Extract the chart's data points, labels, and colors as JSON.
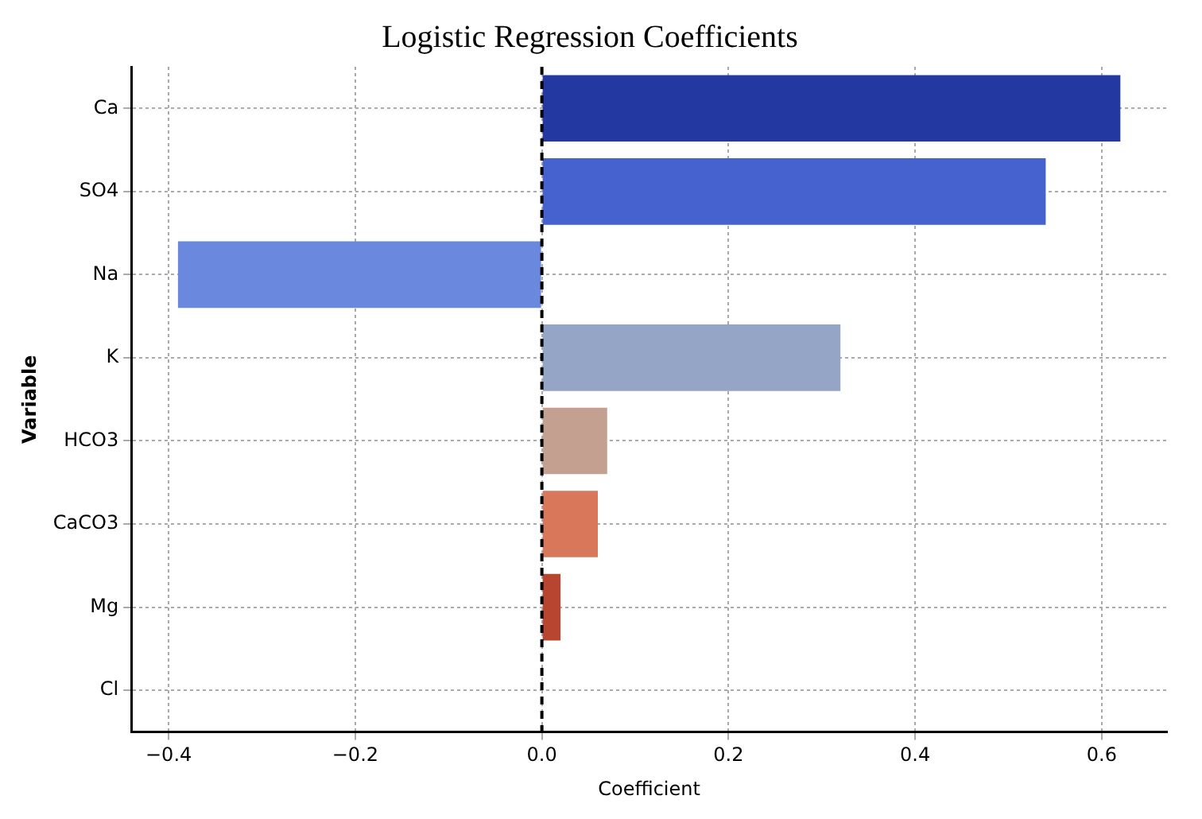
{
  "chart_data": {
    "type": "bar",
    "orientation": "horizontal",
    "title": "Logistic Regression Coefficients",
    "xlabel": "Coefficient",
    "ylabel": "Variable",
    "categories": [
      "Ca",
      "SO4",
      "Na",
      "K",
      "HCO3",
      "CaCO3",
      "Mg",
      "Cl"
    ],
    "values": [
      0.62,
      0.54,
      -0.39,
      0.32,
      0.07,
      0.06,
      0.02,
      0
    ],
    "colors": [
      "#2338a0",
      "#4562cf",
      "#6a88de",
      "#94a5c6",
      "#c4a090",
      "#d9775a",
      "#b84530",
      "#a02a20"
    ],
    "xlim": [
      -0.44,
      0.67
    ],
    "xticks": [
      {
        "value": -0.4,
        "label": "−0.4"
      },
      {
        "value": -0.2,
        "label": "−0.2"
      },
      {
        "value": 0,
        "label": "0.0"
      },
      {
        "value": 0.2,
        "label": "0.2"
      },
      {
        "value": 0.4,
        "label": "0.4"
      },
      {
        "value": 0.6,
        "label": "0.6"
      }
    ],
    "ref_lines": [
      {
        "axis": "x",
        "value": 0,
        "color": "#000000",
        "line_style": "dashed"
      }
    ],
    "grid": true,
    "legend": false
  }
}
